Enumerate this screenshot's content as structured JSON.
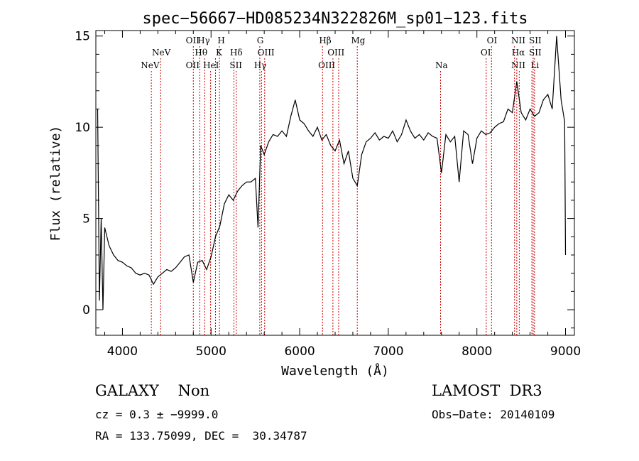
{
  "chart_data": {
    "type": "line",
    "title": "spec−56667−HD085234N322826M_sp01−123.fits",
    "xlabel": "Wavelength (Å)",
    "ylabel": "Flux (relative)",
    "xlim": [
      3700,
      9100
    ],
    "ylim": [
      -1.4,
      15.3
    ],
    "x_ticks": [
      4000,
      5000,
      6000,
      7000,
      8000,
      9000
    ],
    "y_ticks": [
      0,
      5,
      10,
      15
    ],
    "grid": false,
    "line_color": "#000000",
    "marker_color": "#cc0000",
    "series": [
      {
        "x": [
          3720,
          3740,
          3760,
          3780,
          3800,
          3850,
          3900,
          3950,
          4000,
          4050,
          4100,
          4150,
          4200,
          4250,
          4300,
          4350,
          4400,
          4450,
          4500,
          4550,
          4600,
          4650,
          4700,
          4750,
          4800,
          4850,
          4900,
          4950,
          5000,
          5050,
          5100,
          5150,
          5200,
          5250,
          5300,
          5350,
          5400,
          5450,
          5500,
          5530,
          5560,
          5600,
          5650,
          5700,
          5750,
          5800,
          5850,
          5900,
          5950,
          6000,
          6050,
          6100,
          6150,
          6200,
          6250,
          6300,
          6350,
          6400,
          6450,
          6500,
          6550,
          6600,
          6650,
          6700,
          6750,
          6800,
          6850,
          6900,
          6950,
          7000,
          7050,
          7100,
          7150,
          7200,
          7250,
          7300,
          7350,
          7400,
          7450,
          7500,
          7550,
          7600,
          7650,
          7700,
          7750,
          7800,
          7850,
          7900,
          7950,
          8000,
          8050,
          8100,
          8150,
          8200,
          8250,
          8300,
          8350,
          8400,
          8450,
          8500,
          8550,
          8600,
          8650,
          8700,
          8750,
          8800,
          8850,
          8900,
          8950,
          8990,
          9000
        ],
        "y": [
          11.0,
          0.5,
          5.0,
          0.0,
          4.5,
          3.5,
          3.0,
          2.7,
          2.6,
          2.4,
          2.3,
          2.0,
          1.9,
          2.0,
          1.9,
          1.4,
          1.8,
          2.0,
          2.2,
          2.1,
          2.3,
          2.6,
          2.9,
          3.0,
          1.5,
          2.6,
          2.7,
          2.2,
          2.9,
          4.0,
          4.6,
          5.8,
          6.3,
          6.0,
          6.5,
          6.8,
          7.0,
          7.0,
          7.2,
          4.5,
          9.0,
          8.5,
          9.2,
          9.6,
          9.5,
          9.8,
          9.5,
          10.6,
          11.5,
          10.4,
          10.2,
          9.8,
          9.5,
          10.0,
          9.3,
          9.6,
          9.0,
          8.7,
          9.3,
          8.0,
          8.7,
          7.2,
          6.8,
          8.5,
          9.2,
          9.4,
          9.7,
          9.3,
          9.5,
          9.4,
          9.8,
          9.2,
          9.6,
          10.4,
          9.8,
          9.4,
          9.6,
          9.3,
          9.7,
          9.5,
          9.4,
          7.5,
          9.6,
          9.2,
          9.5,
          7.0,
          9.8,
          9.6,
          8.0,
          9.4,
          9.8,
          9.6,
          9.7,
          10.0,
          10.2,
          10.3,
          11.0,
          10.8,
          12.5,
          10.8,
          10.4,
          11.0,
          10.6,
          10.8,
          11.5,
          11.8,
          11.0,
          15.0,
          11.5,
          10.3,
          3.0
        ]
      }
    ]
  },
  "spectral_lines": [
    {
      "label": "NeV",
      "row": 3,
      "label_x": 4312,
      "lines": [
        4326
      ]
    },
    {
      "label": "NeV",
      "row": 2,
      "label_x": 4438,
      "lines": [
        4431
      ]
    },
    {
      "label": "OII",
      "row": 1,
      "label_x": 4792,
      "lines": [
        4800
      ]
    },
    {
      "label": "OII",
      "row": 3,
      "label_x": 4792,
      "lines": []
    },
    {
      "label": "Hγ",
      "row": 1,
      "label_x": 4917,
      "lines": [
        4873
      ]
    },
    {
      "label": "Hθ",
      "row": 2,
      "label_x": 4888,
      "lines": [
        4928
      ]
    },
    {
      "label": "H",
      "row": 1,
      "label_x": 5115,
      "lines": [
        5095
      ]
    },
    {
      "label": "K",
      "row": 2,
      "label_x": 5090,
      "lines": [
        5050
      ]
    },
    {
      "label": "HeI",
      "row": 3,
      "label_x": 5000,
      "lines": [
        4995
      ]
    },
    {
      "label": "Hδ",
      "row": 2,
      "label_x": 5285,
      "lines": [
        5258
      ]
    },
    {
      "label": "SII",
      "row": 3,
      "label_x": 5280,
      "lines": [
        5284
      ]
    },
    {
      "label": "G",
      "row": 1,
      "label_x": 5555,
      "lines": [
        5550
      ]
    },
    {
      "label": "OIII",
      "row": 2,
      "label_x": 5620,
      "lines": [
        5605
      ]
    },
    {
      "label": "Hγ",
      "row": 3,
      "label_x": 5555,
      "lines": [
        5570
      ]
    },
    {
      "label": "Hβ",
      "row": 1,
      "label_x": 6288,
      "lines": [
        6258
      ]
    },
    {
      "label": "OIII",
      "row": 2,
      "label_x": 6410,
      "lines": [
        6375,
        6440
      ]
    },
    {
      "label": "OIII",
      "row": 3,
      "label_x": 6305,
      "lines": []
    },
    {
      "label": "Mg",
      "row": 1,
      "label_x": 6660,
      "lines": [
        6650
      ]
    },
    {
      "label": "Na",
      "row": 3,
      "label_x": 7600,
      "lines": [
        7590
      ]
    },
    {
      "label": "OI",
      "row": 1,
      "label_x": 8170,
      "lines": [
        8165
      ]
    },
    {
      "label": "OI",
      "row": 2,
      "label_x": 8100,
      "lines": [
        8105
      ]
    },
    {
      "label": "NII",
      "row": 1,
      "label_x": 8467,
      "lines": [
        8425
      ]
    },
    {
      "label": "Hα",
      "row": 2,
      "label_x": 8467,
      "lines": [
        8450
      ]
    },
    {
      "label": "NII",
      "row": 3,
      "label_x": 8467,
      "lines": [
        8478
      ]
    },
    {
      "label": "SII",
      "row": 1,
      "label_x": 8658,
      "lines": [
        8635
      ]
    },
    {
      "label": "SII",
      "row": 2,
      "label_x": 8658,
      "lines": [
        8650
      ]
    },
    {
      "label": "Li",
      "row": 3,
      "label_x": 8655,
      "lines": [
        8620
      ]
    }
  ],
  "footer": {
    "object_class": "GALAXY",
    "subclass": "Non",
    "survey": "LAMOST  DR3",
    "cz": "cz = 0.3 ± −9999.0",
    "obs_date": "Obs−Date: 20140109",
    "radec": "RA = 133.75099, DEC =  30.34787"
  }
}
